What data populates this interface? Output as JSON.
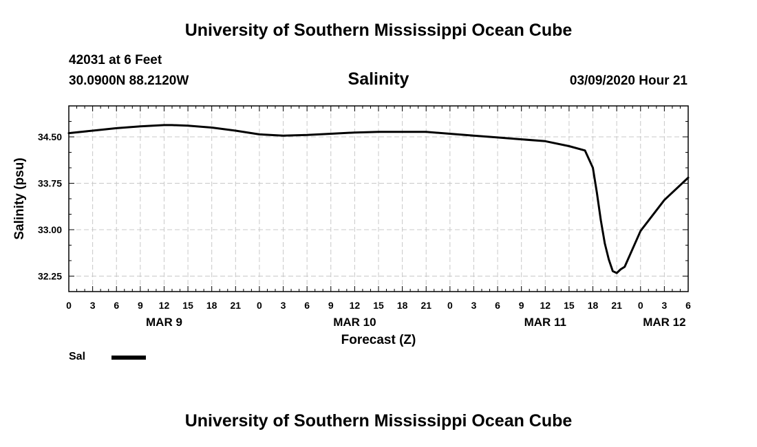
{
  "header": {
    "title": "University of Southern Mississippi Ocean Cube",
    "station": "42031 at 6 Feet",
    "coords": "30.0900N 88.2120W",
    "datetime": "03/09/2020 Hour 21"
  },
  "footer": {
    "title": "University of Southern Mississippi Ocean Cube"
  },
  "chart_data": {
    "type": "line",
    "title": "Salinity",
    "xlabel": "Forecast (Z)",
    "ylabel": "Salinity (psu)",
    "xlim": [
      0,
      78
    ],
    "ylim": [
      32.0,
      35.0
    ],
    "grid": true,
    "x_ticks": [
      0,
      3,
      6,
      9,
      12,
      15,
      18,
      21,
      24,
      27,
      30,
      33,
      36,
      39,
      42,
      45,
      48,
      51,
      54,
      57,
      60,
      63,
      66,
      69,
      72,
      75,
      78
    ],
    "x_tick_labels": [
      "0",
      "3",
      "6",
      "9",
      "12",
      "15",
      "18",
      "21",
      "0",
      "3",
      "6",
      "9",
      "12",
      "15",
      "18",
      "21",
      "0",
      "3",
      "6",
      "9",
      "12",
      "15",
      "18",
      "21",
      "0",
      "3",
      "6"
    ],
    "date_labels": [
      {
        "label": "MAR 9",
        "x": 12
      },
      {
        "label": "MAR 10",
        "x": 36
      },
      {
        "label": "MAR 11",
        "x": 60
      },
      {
        "label": "MAR 12",
        "x": 75
      }
    ],
    "y_ticks": [
      32.25,
      33.0,
      33.75,
      34.5
    ],
    "y_tick_labels": [
      "32.25",
      "33.00",
      "33.75",
      "34.50"
    ],
    "legend": [
      {
        "name": "Sal",
        "color": "#000000"
      }
    ],
    "series": [
      {
        "name": "Sal",
        "color": "#000000",
        "x": [
          0,
          3,
          6,
          9,
          12,
          13,
          15,
          18,
          21,
          24,
          27,
          30,
          33,
          36,
          39,
          42,
          45,
          48,
          51,
          54,
          57,
          60,
          63,
          65,
          66,
          66.5,
          67,
          67.5,
          68,
          68.5,
          69,
          69.5,
          70,
          72,
          75,
          78
        ],
        "y": [
          34.56,
          34.6,
          34.64,
          34.67,
          34.69,
          34.69,
          34.68,
          34.65,
          34.6,
          34.54,
          34.52,
          34.53,
          34.55,
          34.57,
          34.58,
          34.58,
          34.58,
          34.55,
          34.52,
          34.49,
          34.46,
          34.43,
          34.35,
          34.28,
          34.0,
          33.6,
          33.15,
          32.78,
          32.52,
          32.33,
          32.3,
          32.36,
          32.4,
          32.98,
          33.48,
          33.84
        ]
      }
    ]
  }
}
